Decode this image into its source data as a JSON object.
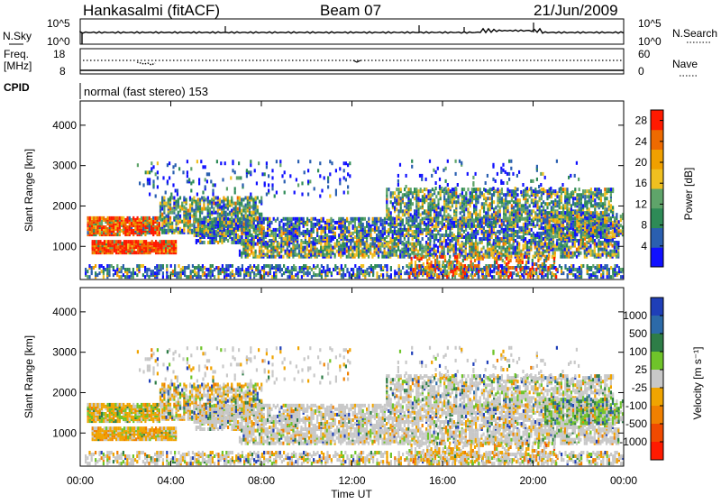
{
  "header": {
    "station": "Hankasalmi (fitACF)",
    "beam": "Beam 07",
    "date": "21/Jun/2009"
  },
  "top_panels": {
    "nsky_label": "N.Sky",
    "nsky_ticks": [
      "10^5",
      "10^0"
    ],
    "nsearch_label": "N.Search",
    "nsearch_ticks": [
      "10^5",
      "10^0"
    ],
    "freq_label_line1": "Freq.",
    "freq_label_line2": "[MHz]",
    "freq_ticks": [
      "18",
      "8"
    ],
    "nave_label": "Nave",
    "nave_ticks": [
      "60",
      "0"
    ],
    "cpid_label": "CPID",
    "cpid_text": "normal (fast stereo) 153"
  },
  "colors": {
    "power_scale": [
      "#1010ff",
      "#2a5fb0",
      "#2e8b57",
      "#5fa46a",
      "#f0c020",
      "#f0a000",
      "#ee6a00",
      "#ff1a00"
    ],
    "velocity_scale": [
      "#1f3fb8",
      "#2c6aa8",
      "#2e7d47",
      "#6fc42a",
      "#c8c8c8",
      "#f0a400",
      "#f08000",
      "#f04a00",
      "#ff1a00"
    ]
  },
  "chart_data": [
    {
      "type": "heatmap",
      "title": "",
      "xlabel": "Time UT",
      "ylabel": "Slant Range [km]",
      "x_ticks": [
        "00:00",
        "04:00",
        "08:00",
        "12:00",
        "16:00",
        "20:00",
        "00:00"
      ],
      "y_ticks": [
        "1000",
        "2000",
        "3000",
        "4000"
      ],
      "ylim": [
        180,
        4600
      ],
      "colorbar_label": "Power [dB]",
      "colorbar_ticks": [
        "4",
        "8",
        "12",
        "16",
        "20",
        "24",
        "28"
      ],
      "colorbar_range": [
        0,
        30
      ]
    },
    {
      "type": "heatmap",
      "title": "",
      "xlabel": "Time UT",
      "ylabel": "Slant Range [km]",
      "x_ticks": [
        "00:00",
        "04:00",
        "08:00",
        "12:00",
        "16:00",
        "20:00",
        "00:00"
      ],
      "y_ticks": [
        "1000",
        "2000",
        "3000",
        "4000"
      ],
      "ylim": [
        180,
        4600
      ],
      "colorbar_label": "Velocity [m s⁻¹]",
      "colorbar_ticks": [
        "1000",
        "500",
        "100",
        "25",
        "-25",
        "-100",
        "-500",
        "-1000"
      ]
    }
  ]
}
